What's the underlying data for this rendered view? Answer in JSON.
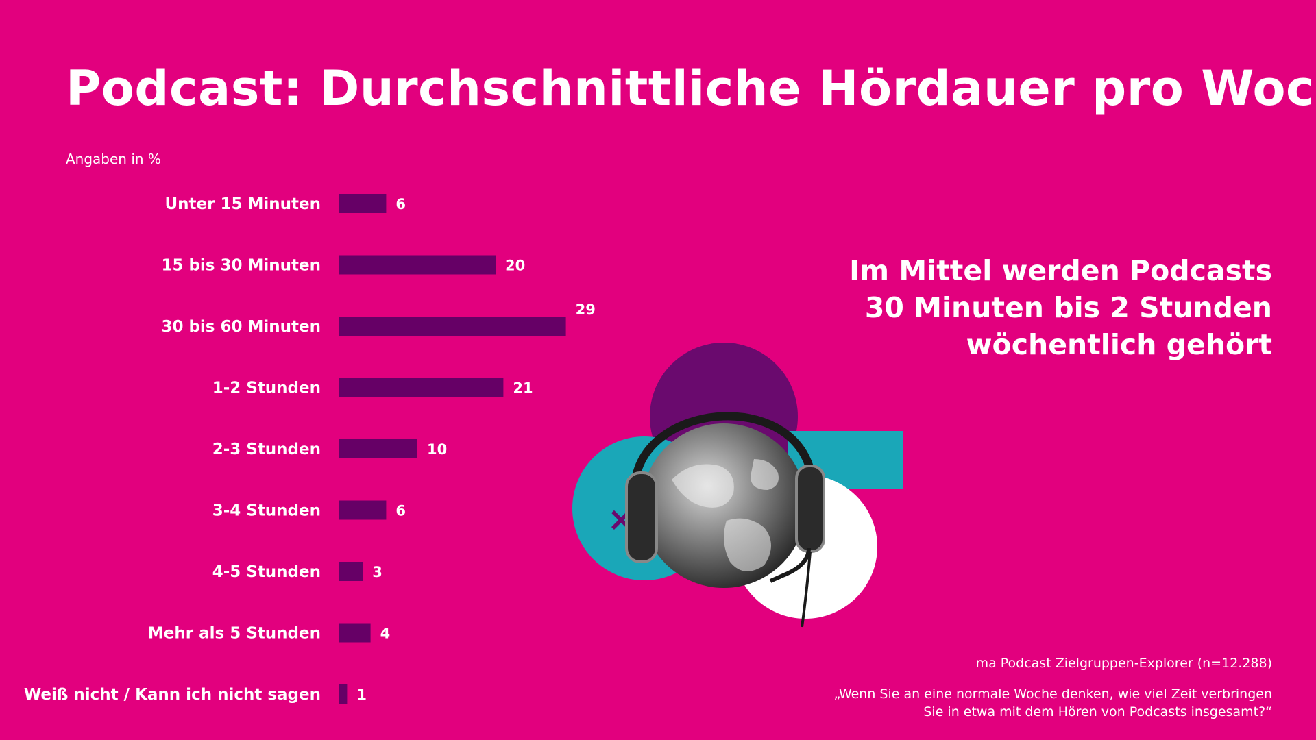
{
  "title": "Podcast: Durchschnittliche Hördauer pro Woche",
  "unit_note": "Angaben in %",
  "headline": {
    "line1": "Im Mittel werden Podcasts",
    "line2": "30 Minuten bis 2 Stunden",
    "line3": "wöchentlich gehört"
  },
  "source": "ma Podcast Zielgruppen-Explorer (n=12.288)",
  "question": {
    "line1": "„Wenn Sie an eine normale Woche denken, wie viel Zeit verbringen",
    "line2": "Sie in etwa mit dem Hören von Podcasts insgesamt?“"
  },
  "colors": {
    "background": "#e2007e",
    "bar": "#660066",
    "teal": "#1aa7b8",
    "purple_circle": "#6a0a6e",
    "white": "#ffffff"
  },
  "illustration": {
    "icon": "globe-with-headphones-icon",
    "mark": "×"
  },
  "chart_data": {
    "type": "bar",
    "orientation": "horizontal",
    "categories": [
      "Unter 15 Minuten",
      "15 bis 30 Minuten",
      "30 bis 60 Minuten",
      "1-2 Stunden",
      "2-3 Stunden",
      "3-4 Stunden",
      "4-5 Stunden",
      "Mehr als 5 Stunden",
      "Weiß nicht / Kann ich nicht sagen"
    ],
    "values": [
      6,
      20,
      29,
      21,
      10,
      6,
      3,
      4,
      1
    ],
    "value_labels": [
      "6",
      "20",
      "29",
      "21",
      "10",
      "6",
      "3",
      "4",
      "1"
    ],
    "title": "Podcast: Durchschnittliche Hördauer pro Woche",
    "xlabel": "",
    "ylabel": "",
    "grid": false
  }
}
